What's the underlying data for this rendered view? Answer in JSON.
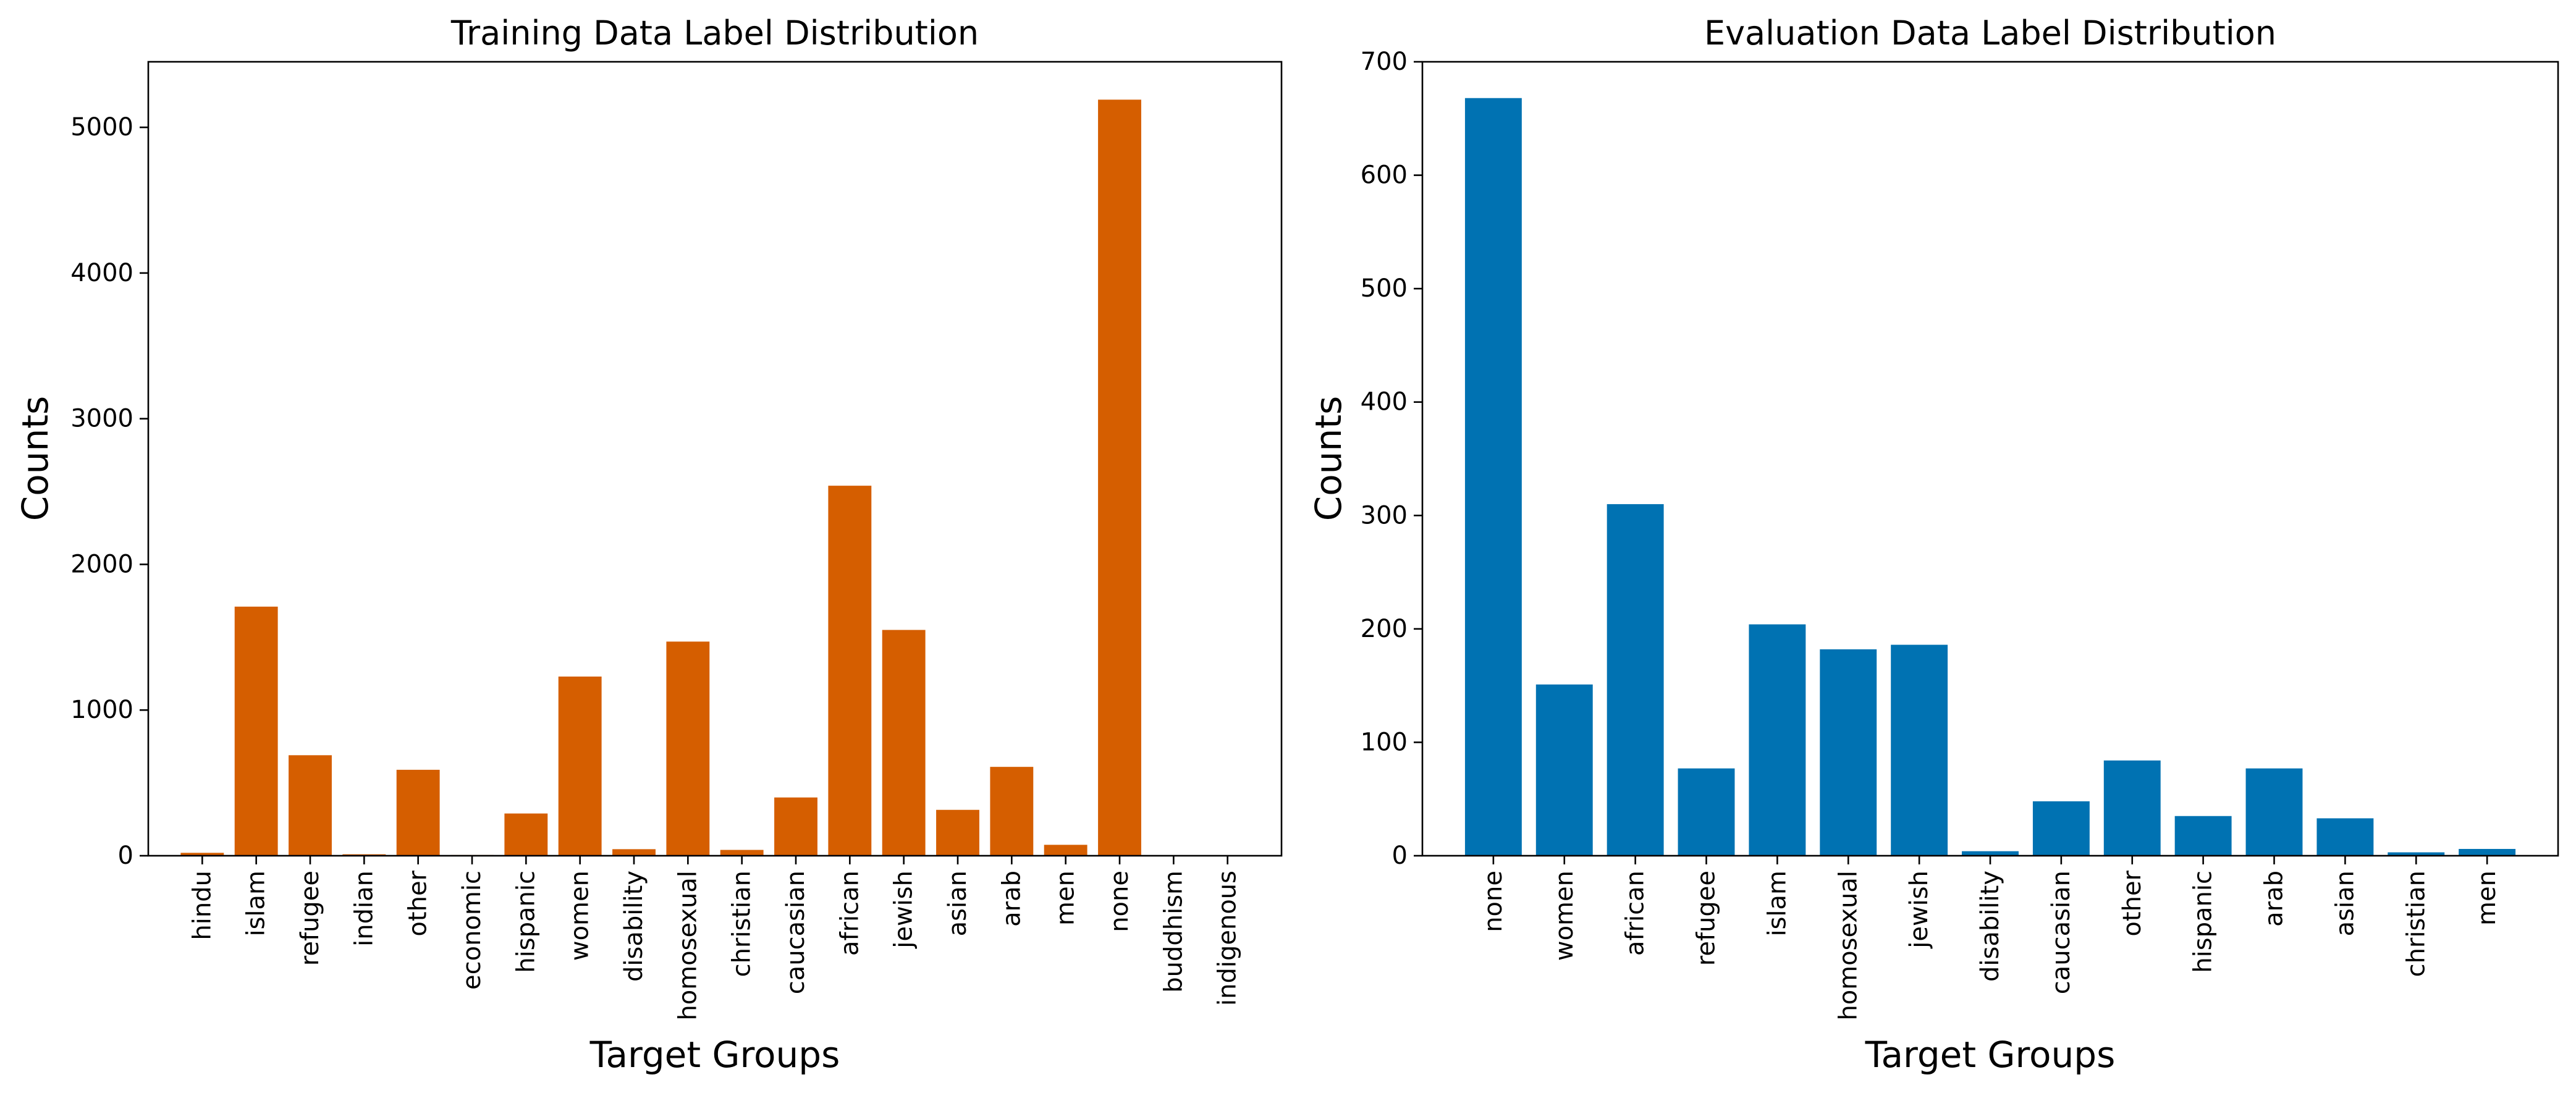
{
  "chart_data": [
    {
      "type": "bar",
      "title": "Training Data Label Distribution",
      "xlabel": "Target Groups",
      "ylabel": "Counts",
      "ylim": [
        0,
        5450
      ],
      "yticks": [
        0,
        1000,
        2000,
        3000,
        4000,
        5000
      ],
      "grid": false,
      "color": "#d55e00",
      "categories": [
        "hindu",
        "islam",
        "refugee",
        "indian",
        "other",
        "economic",
        "hispanic",
        "women",
        "disability",
        "homosexual",
        "christian",
        "caucasian",
        "african",
        "jewish",
        "asian",
        "arab",
        "men",
        "none",
        "buddhism",
        "indigenous"
      ],
      "values": [
        20,
        1710,
        690,
        10,
        590,
        5,
        290,
        1230,
        45,
        1470,
        40,
        400,
        2540,
        1550,
        315,
        610,
        75,
        5190,
        2,
        1
      ]
    },
    {
      "type": "bar",
      "title": "Evaluation Data Label Distribution",
      "xlabel": "Target Groups",
      "ylabel": "Counts",
      "ylim": [
        0,
        700
      ],
      "yticks": [
        0,
        100,
        200,
        300,
        400,
        500,
        600,
        700
      ],
      "grid": false,
      "color": "#0072b2",
      "categories": [
        "none",
        "women",
        "african",
        "refugee",
        "islam",
        "homosexual",
        "jewish",
        "disability",
        "caucasian",
        "other",
        "hispanic",
        "arab",
        "asian",
        "christian",
        "men"
      ],
      "values": [
        668,
        151,
        310,
        77,
        204,
        182,
        186,
        4,
        48,
        84,
        35,
        77,
        33,
        3,
        6
      ]
    }
  ]
}
